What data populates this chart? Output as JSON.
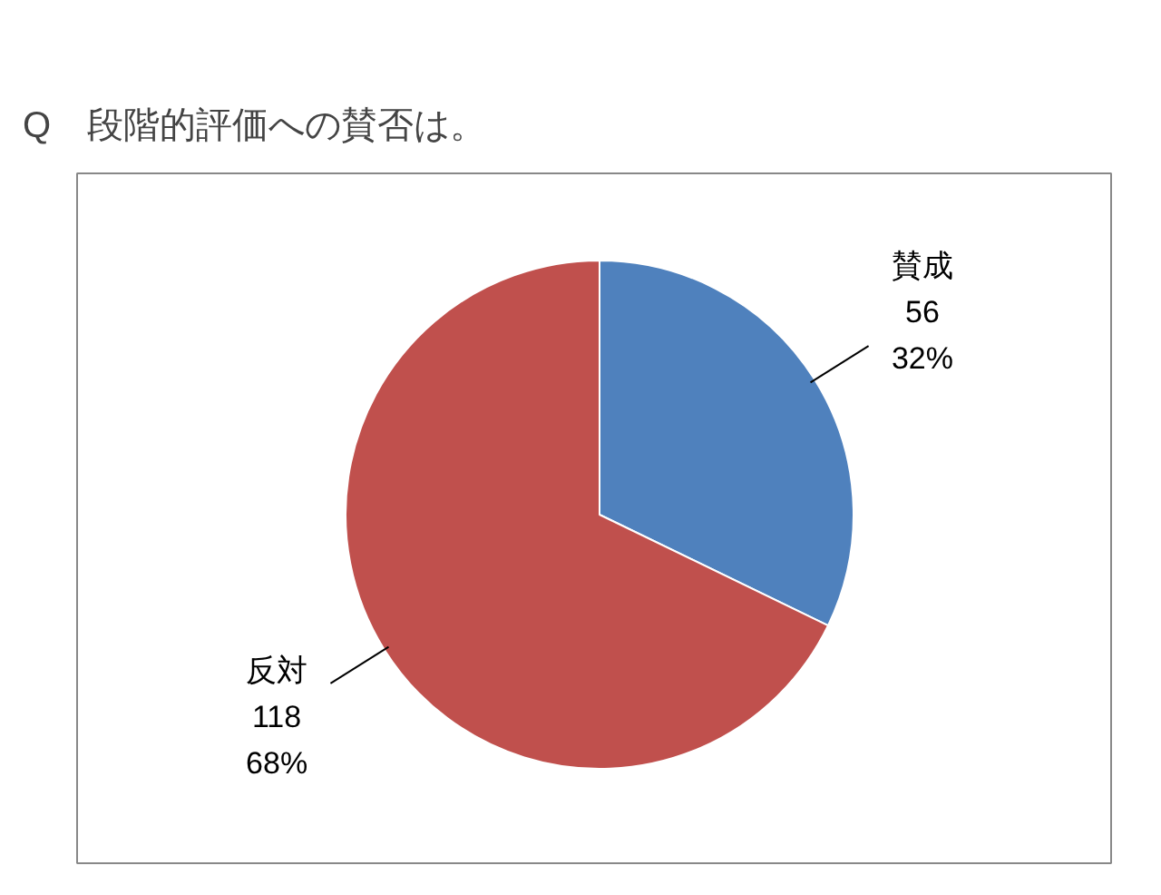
{
  "chart_data": {
    "type": "pie",
    "title": "Q　段階的評価への賛否は。",
    "categories": [
      "賛成",
      "反対"
    ],
    "values": [
      56,
      118
    ],
    "colors": [
      "#4f81bd",
      "#c0504d"
    ],
    "value_labels": [
      "56\n32%",
      "118\n68%"
    ],
    "legend": false
  }
}
